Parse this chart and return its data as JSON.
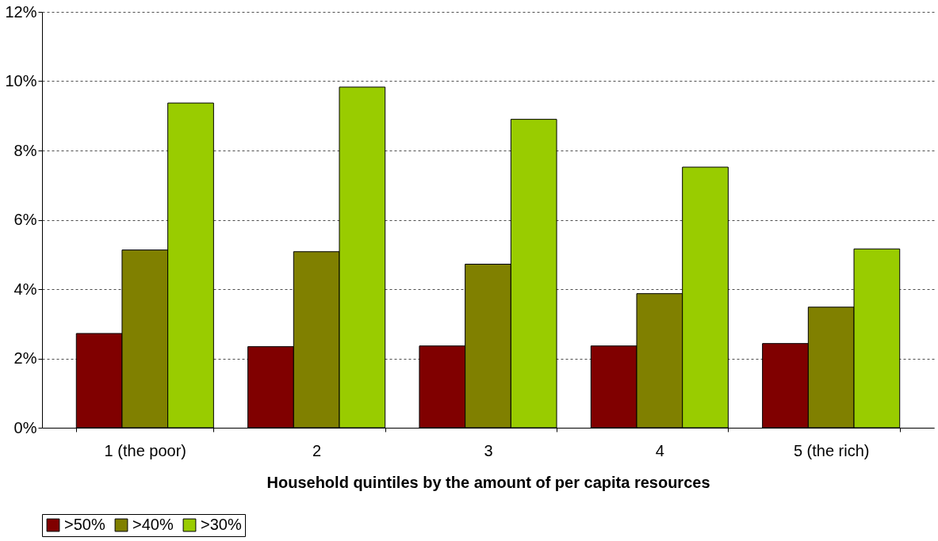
{
  "chart_data": {
    "type": "bar",
    "xlabel": "Household quintiles by the amount of per capita resources",
    "categories": [
      "1 (the poor)",
      "2",
      "3",
      "4",
      "5 (the rich)"
    ],
    "series": [
      {
        "name": ">50%",
        "color": "#800000",
        "values": [
          2.72,
          2.34,
          2.36,
          2.36,
          2.43
        ]
      },
      {
        "name": ">40%",
        "color": "#808000",
        "values": [
          5.13,
          5.08,
          4.72,
          3.87,
          3.48
        ]
      },
      {
        "name": ">30%",
        "color": "#99cc00",
        "values": [
          9.37,
          9.83,
          8.9,
          7.52,
          5.16
        ]
      }
    ],
    "ylim": [
      0,
      12
    ],
    "yticks": [
      {
        "value": 0,
        "label": "0%"
      },
      {
        "value": 2,
        "label": "2%"
      },
      {
        "value": 4,
        "label": "4%"
      },
      {
        "value": 6,
        "label": "6%"
      },
      {
        "value": 8,
        "label": "8%"
      },
      {
        "value": 10,
        "label": "10%"
      },
      {
        "value": 12,
        "label": "12%"
      }
    ],
    "grid": "y",
    "legend": "bottom"
  }
}
